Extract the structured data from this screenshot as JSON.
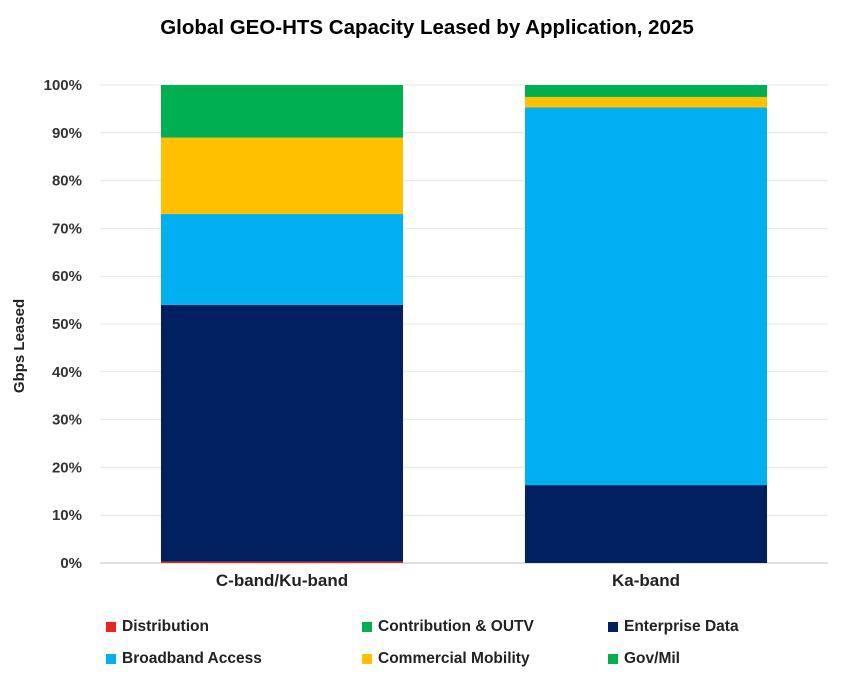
{
  "chart_data": {
    "type": "bar",
    "stacked": true,
    "title": "Global GEO-HTS Capacity Leased by Application,  2025",
    "xlabel": "",
    "ylabel": "Gbps Leased",
    "ylim": [
      0,
      100
    ],
    "yticks": [
      "0%",
      "10%",
      "20%",
      "30%",
      "40%",
      "50%",
      "60%",
      "70%",
      "80%",
      "90%",
      "100%"
    ],
    "grid": true,
    "legend_position": "bottom",
    "categories": [
      "C-band/Ku-band",
      "Ka-band"
    ],
    "series": [
      {
        "name": "Distribution",
        "color": "#e8251e",
        "values": [
          0.3,
          0.0
        ]
      },
      {
        "name": "Contribution & OUTV",
        "color": "#00b050",
        "values": [
          0.0,
          0.0
        ]
      },
      {
        "name": "Enterprise Data",
        "color": "#002060",
        "values": [
          53.7,
          16.3
        ]
      },
      {
        "name": "Broadband Access",
        "color": "#00b0f0",
        "values": [
          19.0,
          79.0
        ]
      },
      {
        "name": "Commercial Mobility",
        "color": "#ffc000",
        "values": [
          16.0,
          2.2
        ]
      },
      {
        "name": "Gov/Mil",
        "color": "#00b050",
        "values": [
          11.0,
          2.5
        ]
      }
    ]
  }
}
